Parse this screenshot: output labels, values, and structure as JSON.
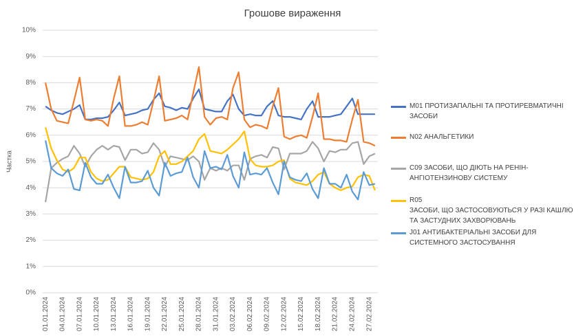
{
  "chart_data": {
    "type": "line",
    "title": "Грошове вираження",
    "y_label": "Частка",
    "categories": [
      "01.01.2024",
      null,
      null,
      "04.01.2024",
      null,
      null,
      "07.01.2024",
      null,
      null,
      "10.01.2024",
      null,
      null,
      "13.01.2024",
      null,
      null,
      "16.01.2024",
      null,
      null,
      "19.01.2024",
      null,
      null,
      "22.01.2024",
      null,
      null,
      "25.01.2024",
      null,
      null,
      "28.01.2024",
      null,
      null,
      "31.01.2024",
      null,
      null,
      "03.02.2024",
      null,
      null,
      "06.02.2024",
      null,
      null,
      "09.02.2024",
      null,
      null,
      "12.02.2024",
      null,
      null,
      "15.02.2024",
      null,
      null,
      "18.02.2024",
      null,
      null,
      "21.02.2024",
      null,
      null,
      "24.02.2024",
      null,
      null,
      "27.02.2024",
      null
    ],
    "ylim": [
      0,
      10
    ],
    "yticks": [
      {
        "value": 0,
        "label": "0%"
      },
      {
        "value": 1,
        "label": "1%"
      },
      {
        "value": 2,
        "label": "2%"
      },
      {
        "value": 3,
        "label": "3%"
      },
      {
        "value": 4,
        "label": "4%"
      },
      {
        "value": 5,
        "label": "5%"
      },
      {
        "value": 6,
        "label": "6%"
      },
      {
        "value": 7,
        "label": "7%"
      },
      {
        "value": 8,
        "label": "8%"
      },
      {
        "value": 9,
        "label": "9%"
      },
      {
        "value": 10,
        "label": "10%"
      }
    ],
    "grid": true,
    "legend": "right",
    "series": [
      {
        "name": "M01 ПРОТИЗАПАЛЬНІ ТА ПРОТИРЕВМАТИЧНІ ЗАСОБИ",
        "color": "#4472c4",
        "values": [
          7.1,
          6.95,
          6.85,
          6.8,
          6.9,
          7.0,
          7.15,
          6.6,
          6.6,
          6.65,
          6.65,
          6.7,
          6.95,
          7.25,
          6.75,
          6.8,
          6.85,
          6.95,
          7.0,
          7.35,
          7.6,
          7.1,
          7.05,
          6.95,
          7.05,
          7.0,
          7.4,
          7.75,
          7.0,
          6.95,
          6.9,
          6.9,
          7.3,
          7.55,
          7.0,
          6.75,
          6.8,
          6.75,
          6.75,
          7.1,
          7.3,
          6.75,
          6.7,
          6.7,
          6.65,
          6.6,
          7.0,
          7.3,
          6.7,
          6.7,
          6.7,
          6.75,
          6.8,
          7.1,
          7.4,
          6.8,
          6.8,
          6.8,
          6.8
        ]
      },
      {
        "name": "N02 АНАЛЬГЕТИКИ",
        "color": "#ed7d31",
        "values": [
          8.0,
          7.0,
          6.55,
          6.5,
          6.45,
          7.3,
          8.2,
          6.6,
          6.55,
          6.6,
          6.55,
          6.35,
          7.4,
          8.25,
          6.35,
          6.35,
          6.4,
          6.5,
          6.4,
          7.3,
          8.25,
          6.55,
          6.6,
          6.65,
          6.75,
          6.6,
          7.6,
          8.6,
          6.7,
          6.4,
          6.65,
          6.7,
          6.6,
          7.8,
          8.4,
          6.6,
          6.3,
          6.4,
          6.35,
          6.25,
          7.1,
          7.8,
          5.95,
          5.85,
          5.95,
          6.0,
          5.9,
          6.7,
          7.6,
          5.85,
          5.85,
          5.8,
          5.8,
          5.75,
          6.6,
          7.35,
          5.75,
          5.7,
          5.6
        ]
      },
      {
        "name": "C09 ЗАСОБИ, ЩО ДІЮТЬ НА РЕНІН-АНГІОТЕНЗИНОВУ СИСТЕМУ",
        "color": "#a5a5a5",
        "values": [
          3.45,
          4.75,
          4.95,
          5.1,
          5.2,
          5.6,
          5.3,
          4.8,
          5.2,
          5.45,
          5.6,
          5.45,
          5.6,
          5.55,
          5.05,
          5.45,
          5.45,
          5.3,
          5.35,
          5.7,
          5.45,
          4.8,
          5.2,
          5.15,
          5.1,
          5.05,
          5.2,
          5.0,
          4.3,
          4.75,
          4.65,
          4.75,
          4.65,
          4.85,
          4.85,
          4.3,
          5.1,
          5.2,
          5.25,
          5.15,
          5.55,
          5.5,
          4.7,
          5.3,
          5.3,
          5.3,
          5.4,
          5.75,
          5.5,
          5.0,
          5.4,
          5.35,
          5.45,
          5.45,
          5.7,
          5.75,
          4.9,
          5.2,
          5.3
        ]
      },
      {
        "name": "R05\nЗАСОБИ, ЩО ЗАСТОСОВУЮТЬСЯ У РАЗІ КАШЛЮ ТА ЗАСТУДНИХ ЗАХВОРЮВАНЬ",
        "color": "#ffc000",
        "values": [
          6.3,
          5.5,
          5.05,
          4.7,
          4.6,
          4.75,
          5.15,
          5.15,
          4.6,
          4.35,
          4.25,
          4.3,
          4.55,
          4.8,
          4.8,
          4.4,
          4.35,
          4.3,
          4.35,
          4.6,
          5.2,
          5.4,
          4.9,
          4.9,
          5.0,
          5.2,
          5.4,
          5.85,
          6.05,
          5.4,
          5.35,
          5.3,
          5.45,
          5.65,
          5.85,
          6.15,
          5.1,
          4.85,
          4.8,
          4.8,
          4.85,
          5.0,
          5.05,
          4.35,
          4.2,
          4.15,
          4.1,
          4.25,
          4.5,
          4.6,
          4.15,
          4.0,
          3.9,
          4.0,
          4.05,
          4.4,
          4.5,
          4.45,
          3.9
        ]
      },
      {
        "name": "J01 АНТИБАКТЕРІАЛЬНІ ЗАСОБИ ДЛЯ СИСТЕМНОГО ЗАСТОСУВАННЯ",
        "color": "#5b9bd5",
        "values": [
          5.8,
          4.75,
          4.55,
          4.45,
          4.7,
          3.95,
          3.9,
          4.95,
          4.4,
          4.15,
          4.15,
          4.5,
          4.0,
          3.6,
          4.8,
          4.2,
          4.2,
          4.25,
          4.65,
          4.0,
          3.7,
          4.95,
          4.45,
          4.55,
          4.6,
          5.15,
          4.4,
          4.0,
          5.4,
          4.75,
          4.8,
          4.7,
          5.25,
          4.45,
          4.0,
          5.35,
          4.5,
          4.55,
          4.5,
          4.75,
          4.2,
          3.75,
          5.0,
          4.4,
          4.3,
          4.25,
          4.55,
          3.95,
          3.6,
          4.75,
          4.15,
          4.15,
          4.0,
          4.5,
          3.85,
          3.55,
          4.6,
          4.1,
          4.15
        ]
      }
    ]
  }
}
